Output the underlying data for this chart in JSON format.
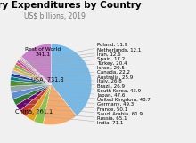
{
  "title": "Military Expenditures by Country",
  "subtitle": "US$ billions, 2019",
  "entries": [
    {
      "label": "USA",
      "value": 731.8,
      "color": "#74b9e8"
    },
    {
      "label": "China",
      "value": 261.1,
      "color": "#f5a96a"
    },
    {
      "label": "India",
      "value": 71.1,
      "color": "#8bc34a"
    },
    {
      "label": "Russia",
      "value": 65.1,
      "color": "#e8a020"
    },
    {
      "label": "Saudi Arabia",
      "value": 61.9,
      "color": "#c0392b"
    },
    {
      "label": "France",
      "value": 50.1,
      "color": "#6a0572"
    },
    {
      "label": "Germany",
      "value": 49.3,
      "color": "#2e7d32"
    },
    {
      "label": "United Kingdom",
      "value": 48.7,
      "color": "#5b8dd9"
    },
    {
      "label": "Japan",
      "value": 47.6,
      "color": "#90a4ae"
    },
    {
      "label": "South Korea",
      "value": 43.9,
      "color": "#558b2f"
    },
    {
      "label": "Brazil",
      "value": 26.9,
      "color": "#00838f"
    },
    {
      "label": "Italy",
      "value": 26.8,
      "color": "#283593"
    },
    {
      "label": "Australia",
      "value": 25.9,
      "color": "#b0bec5"
    },
    {
      "label": "Canada",
      "value": 22.2,
      "color": "#f9a825"
    },
    {
      "label": "Israel",
      "value": 20.5,
      "color": "#66bb6a"
    },
    {
      "label": "Turkey",
      "value": 20.4,
      "color": "#ef5350"
    },
    {
      "label": "Spain",
      "value": 17.2,
      "color": "#ab47bc"
    },
    {
      "label": "Iran",
      "value": 12.6,
      "color": "#a1887f"
    },
    {
      "label": "Netherlands",
      "value": 12.1,
      "color": "#f48fb1"
    },
    {
      "label": "Poland",
      "value": 11.9,
      "color": "#b0bec5"
    },
    {
      "label": "Rest of World",
      "value": 241.1,
      "color": "#c880c8"
    }
  ],
  "bg_color": "#f0f0f0",
  "title_fontsize": 7.5,
  "subtitle_fontsize": 5.5,
  "label_fontsize": 4.0,
  "internal_fontsize": 4.8
}
